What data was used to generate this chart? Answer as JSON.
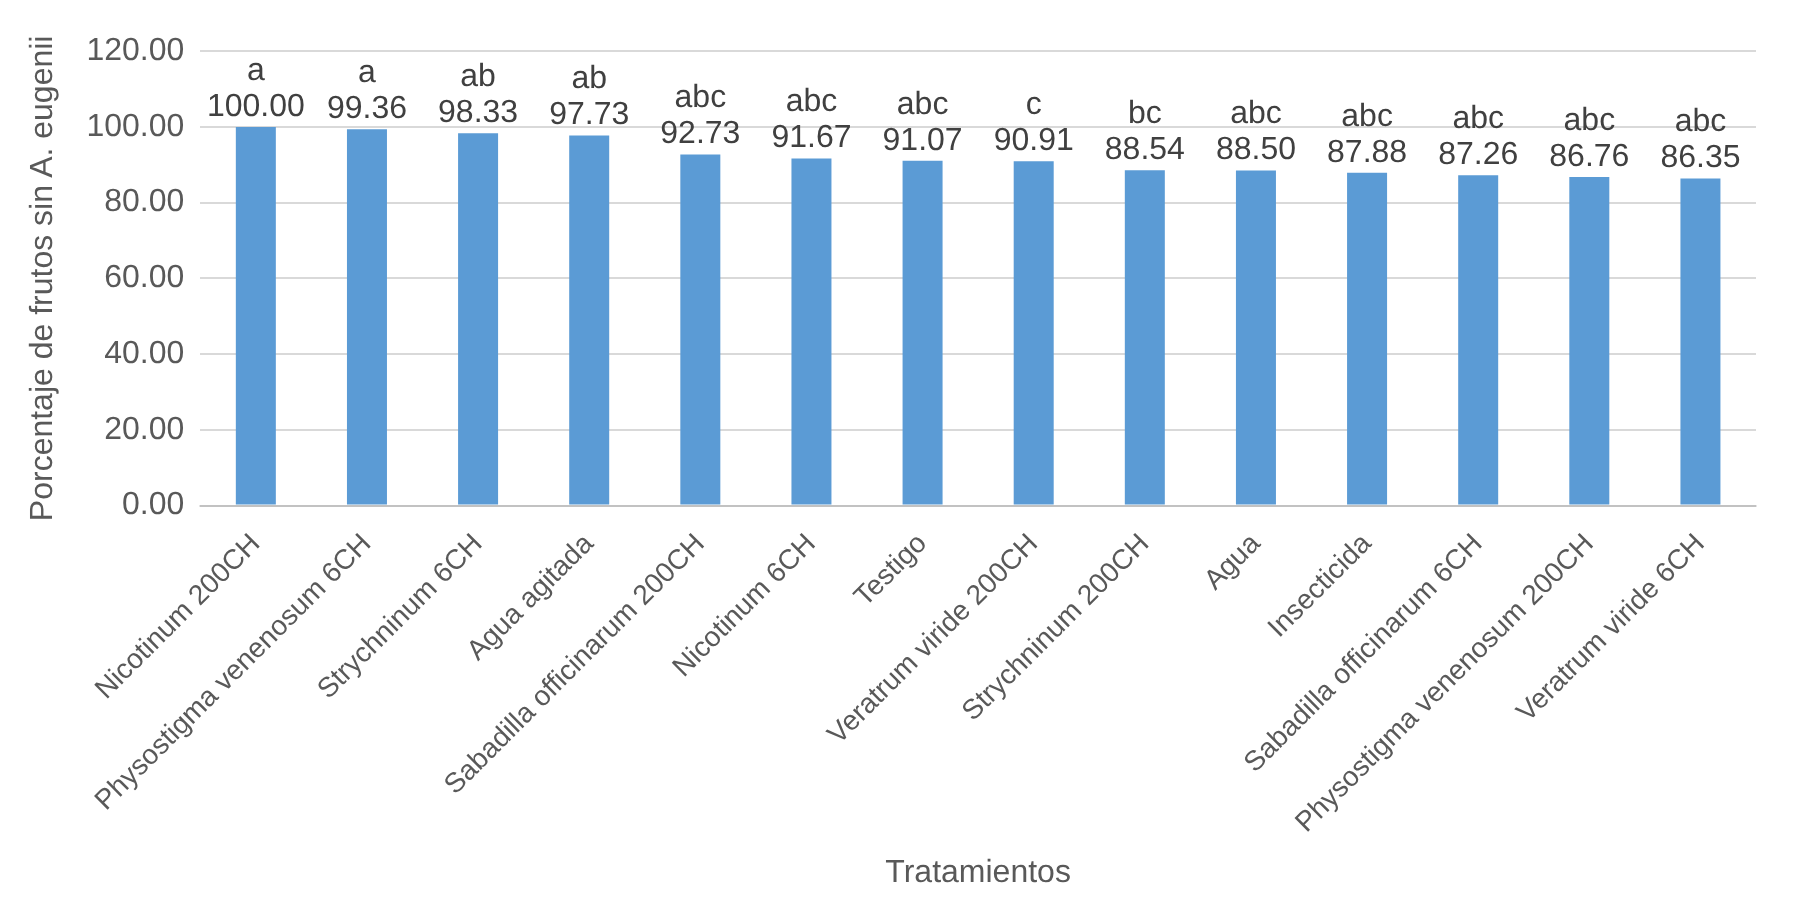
{
  "chart_data": {
    "type": "bar",
    "xlabel": "Tratamientos",
    "ylabel": "Porcentaje de frutos sin A. eugenii",
    "categories": [
      "Nicotinum 200CH",
      "Physostigma venenosum 6CH",
      "Strychninum 6CH",
      "Agua agitada",
      "Sabadilla officinarum 200CH",
      "Nicotinum 6CH",
      "Testigo",
      "Veratrum viride 200CH",
      "Strychninum 200CH",
      "Agua",
      "Insecticida",
      "Sabadilla officinarum 6CH",
      "Physostigma venenosum 200CH",
      "Veratrum viride 6CH"
    ],
    "values": [
      100.0,
      99.36,
      98.33,
      97.73,
      92.73,
      91.67,
      91.07,
      90.91,
      88.54,
      88.5,
      87.88,
      87.26,
      86.76,
      86.35
    ],
    "value_labels": [
      "100.00",
      "99.36",
      "98.33",
      "97.73",
      "92.73",
      "91.67",
      "91.07",
      "90.91",
      "88.54",
      "88.50",
      "87.88",
      "87.26",
      "86.76",
      "86.35"
    ],
    "color": "#5b9bd5",
    "ylim": [
      0,
      120
    ],
    "yticks": [
      {
        "value": 0,
        "label": "0.00"
      },
      {
        "value": 20,
        "label": "20.00"
      },
      {
        "value": 40,
        "label": "40.00"
      },
      {
        "value": 60,
        "label": "60.00"
      },
      {
        "value": 80,
        "label": "80.00"
      },
      {
        "value": 100,
        "label": "100.00"
      },
      {
        "value": 120,
        "label": "120.00"
      }
    ],
    "grid": "y",
    "annotations": [
      {
        "text": "a",
        "x": "Nicotinum 200CH",
        "y": 100.0
      },
      {
        "text": "a",
        "x": "Physostigma venenosum 6CH",
        "y": 99.36
      },
      {
        "text": "ab",
        "x": "Strychninum 6CH",
        "y": 98.33
      },
      {
        "text": "ab",
        "x": "Agua agitada",
        "y": 97.73
      },
      {
        "text": "abc",
        "x": "Sabadilla officinarum 200CH",
        "y": 92.73
      },
      {
        "text": "abc",
        "x": "Nicotinum 6CH",
        "y": 91.67
      },
      {
        "text": "abc",
        "x": "Testigo",
        "y": 91.07
      },
      {
        "text": "c",
        "x": "Veratrum viride 200CH",
        "y": 90.91
      },
      {
        "text": "bc",
        "x": "Strychninum 200CH",
        "y": 88.54
      },
      {
        "text": "abc",
        "x": "Agua",
        "y": 88.5
      },
      {
        "text": "abc",
        "x": "Insecticida",
        "y": 87.88
      },
      {
        "text": "abc",
        "x": "Sabadilla officinarum 6CH",
        "y": 87.26
      },
      {
        "text": "abc",
        "x": "Physostigma venenosum 200CH",
        "y": 86.76
      },
      {
        "text": "abc",
        "x": "Veratrum viride 6CH",
        "y": 86.35
      }
    ]
  }
}
